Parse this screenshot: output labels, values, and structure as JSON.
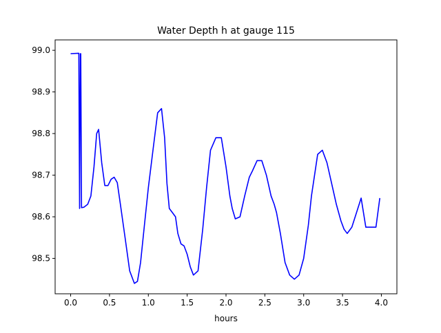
{
  "chart_data": {
    "type": "line",
    "title": "Water Depth h at gauge 115",
    "xlabel": "hours",
    "ylabel": "",
    "xlim": [
      -0.2,
      4.2
    ],
    "ylim": [
      98.415,
      99.025
    ],
    "x_ticks": [
      {
        "value": 0.0,
        "label": "0.0"
      },
      {
        "value": 0.5,
        "label": "0.5"
      },
      {
        "value": 1.0,
        "label": "1.0"
      },
      {
        "value": 1.5,
        "label": "1.5"
      },
      {
        "value": 2.0,
        "label": "2.0"
      },
      {
        "value": 2.5,
        "label": "2.5"
      },
      {
        "value": 3.0,
        "label": "3.0"
      },
      {
        "value": 3.5,
        "label": "3.5"
      },
      {
        "value": 4.0,
        "label": "4.0"
      }
    ],
    "y_ticks": [
      {
        "value": 98.5,
        "label": "98.5"
      },
      {
        "value": 98.6,
        "label": "98.6"
      },
      {
        "value": 98.7,
        "label": "98.7"
      },
      {
        "value": 98.8,
        "label": "98.8"
      },
      {
        "value": 98.9,
        "label": "98.9"
      },
      {
        "value": 99.0,
        "label": "99.0"
      }
    ],
    "grid": false,
    "legend": "none",
    "series": [
      {
        "color": "#0000ff",
        "x": [
          0.0,
          0.1,
          0.105,
          0.115,
          0.125,
          0.13,
          0.14,
          0.17,
          0.22,
          0.26,
          0.3,
          0.335,
          0.36,
          0.4,
          0.44,
          0.48,
          0.52,
          0.56,
          0.6,
          0.64,
          0.7,
          0.76,
          0.82,
          0.86,
          0.9,
          0.95,
          1.0,
          1.06,
          1.12,
          1.17,
          1.21,
          1.24,
          1.27,
          1.31,
          1.35,
          1.38,
          1.42,
          1.46,
          1.5,
          1.54,
          1.58,
          1.64,
          1.7,
          1.75,
          1.8,
          1.87,
          1.94,
          2.0,
          2.05,
          2.08,
          2.12,
          2.18,
          2.24,
          2.3,
          2.34,
          2.4,
          2.46,
          2.52,
          2.58,
          2.62,
          2.65,
          2.7,
          2.76,
          2.82,
          2.88,
          2.94,
          3.0,
          3.06,
          3.1,
          3.14,
          3.18,
          3.24,
          3.3,
          3.36,
          3.42,
          3.48,
          3.52,
          3.56,
          3.62,
          3.68,
          3.74,
          3.8,
          3.84,
          3.88,
          3.93,
          3.98
        ],
        "y": [
          98.992,
          98.993,
          98.993,
          98.62,
          98.992,
          98.992,
          98.622,
          98.623,
          98.63,
          98.65,
          98.72,
          98.8,
          98.81,
          98.73,
          98.675,
          98.675,
          98.69,
          98.695,
          98.682,
          98.63,
          98.55,
          98.47,
          98.44,
          98.445,
          98.49,
          98.58,
          98.67,
          98.76,
          98.85,
          98.86,
          98.79,
          98.68,
          98.62,
          98.61,
          98.6,
          98.56,
          98.535,
          98.53,
          98.51,
          98.48,
          98.46,
          98.47,
          98.57,
          98.67,
          98.76,
          98.79,
          98.79,
          98.72,
          98.65,
          98.62,
          98.595,
          98.6,
          98.65,
          98.695,
          98.71,
          98.735,
          98.735,
          98.7,
          98.65,
          98.63,
          98.61,
          98.56,
          98.49,
          98.46,
          98.45,
          98.46,
          98.5,
          98.58,
          98.65,
          98.7,
          98.75,
          98.76,
          98.73,
          98.68,
          98.63,
          98.59,
          98.57,
          98.56,
          98.575,
          98.61,
          98.645,
          98.575,
          98.575,
          98.575,
          98.575,
          98.645
        ]
      }
    ]
  }
}
